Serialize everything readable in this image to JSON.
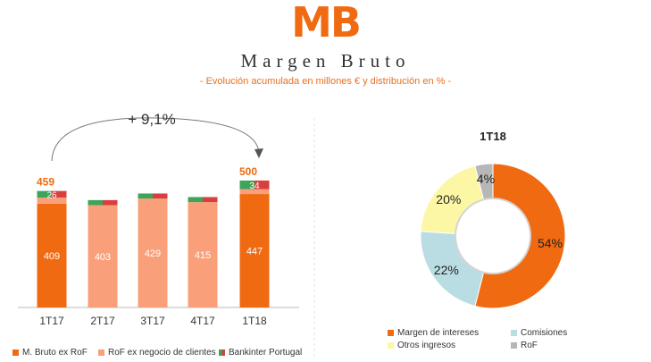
{
  "header": {
    "logo": "MB",
    "title": "Margen Bruto",
    "subtitle": "- Evolución acumulada en millones € y distribución en % -"
  },
  "colors": {
    "accent": "#F06A12",
    "margen_ex_rof": "#F06A12",
    "rof_clientes": "#F9A07A",
    "bankinter_green": "#3FA35A",
    "bankinter_red": "#D8403F",
    "comisiones": "#B9DDE3",
    "otros_ingresos": "#FBF7A4",
    "rof": "#B7B7B7"
  },
  "chart_data": [
    {
      "type": "bar",
      "stacked": true,
      "categories": [
        "1T17",
        "2T17",
        "3T17",
        "4T17",
        "1T18"
      ],
      "series": [
        {
          "name": "M. Bruto ex RoF",
          "values": [
            409,
            null,
            null,
            null,
            447
          ]
        },
        {
          "name": "RoF ex negocio de clientes",
          "values": [
            24,
            403,
            429,
            415,
            19
          ]
        },
        {
          "name": "Bankinter Portugal",
          "values": [
            26,
            20,
            20,
            20,
            34
          ]
        }
      ],
      "totals": {
        "1T17": 459,
        "1T18": 500
      },
      "annotation": "+ 9,1%",
      "value_labels": [
        "409",
        "26",
        "403",
        "429",
        "415",
        "447",
        "34",
        "459",
        "500"
      ],
      "legend_position": "bottom"
    },
    {
      "type": "pie",
      "donut": true,
      "title": "1T18",
      "labels": [
        "Margen de intereses",
        "Comisiones",
        "Otros ingresos",
        "RoF"
      ],
      "values": [
        54,
        22,
        20,
        4
      ],
      "value_labels": [
        "54%",
        "22%",
        "20%",
        "4%"
      ],
      "legend_position": "bottom"
    }
  ]
}
